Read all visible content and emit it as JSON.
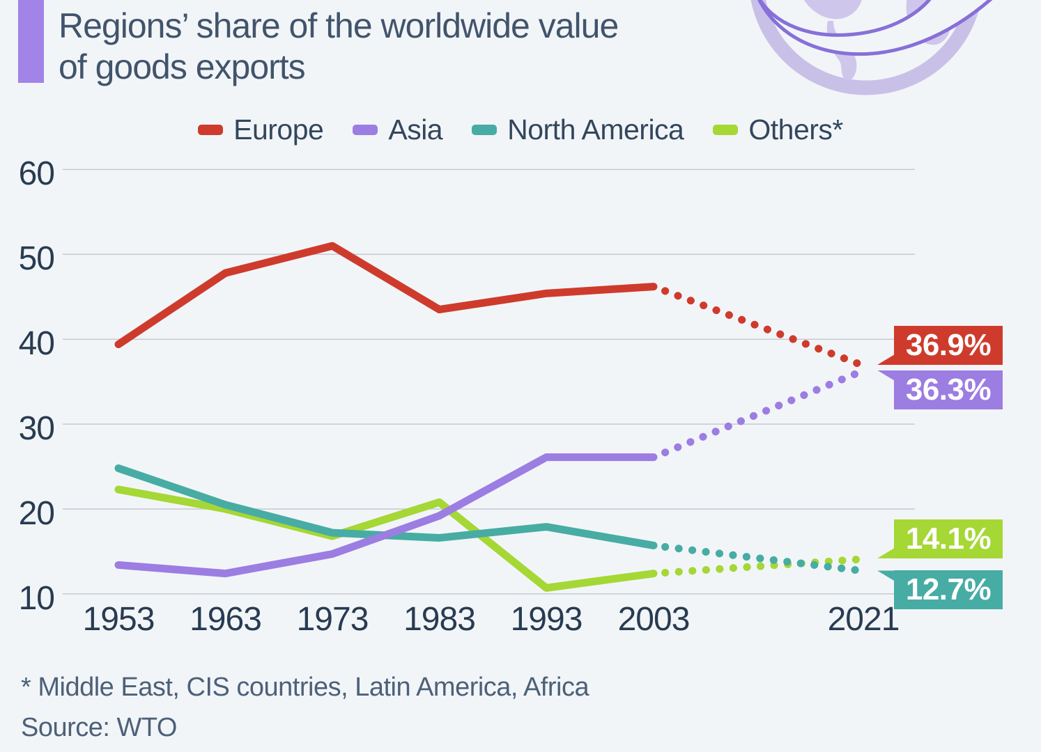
{
  "title": "Regions’ share of the worldwide value\nof goods exports",
  "footnote": "* Middle East, CIS countries, Latin America, Africa",
  "source": "Source: WTO",
  "logo": "globe-with-orbit-icon",
  "colors": {
    "background": "#f2f5f8",
    "accent_bar": "#a283e7",
    "title_text": "#41546b",
    "tick_text": "#283b51",
    "gridline": "#c5cad0",
    "europe": "#ce3b2c",
    "asia": "#9c7de2",
    "north_america": "#47aca4",
    "others": "#a5d735",
    "logo_light": "#cbc2ea",
    "logo_swoosh": "#8770d8"
  },
  "chart_data": {
    "type": "line",
    "title": "Regions’ share of the worldwide value of goods exports",
    "x": [
      1953,
      1963,
      1973,
      1983,
      1993,
      2003,
      2021
    ],
    "x_tick_labels": [
      "1953",
      "1963",
      "1973",
      "1983",
      "1993",
      "2003",
      "2021"
    ],
    "y_ticks": [
      60,
      50,
      40,
      30,
      20,
      10
    ],
    "ylim": [
      8,
      62
    ],
    "unit": "%",
    "grid": "horizontal",
    "legend_position": "top",
    "dotted_from_index": 5,
    "dotted_note": "segment from 2003 to 2021 is drawn as a dotted projection",
    "series": [
      {
        "name": "Others*",
        "color": "#a5d735",
        "values": [
          22.3,
          20.0,
          16.8,
          20.8,
          10.7,
          12.4,
          14.1
        ],
        "end_label": "14.1%",
        "tail": "down"
      },
      {
        "name": "North America",
        "color": "#47aca4",
        "values": [
          24.8,
          20.5,
          17.2,
          16.6,
          17.9,
          15.7,
          12.7
        ],
        "end_label": "12.7%",
        "tail": "up"
      },
      {
        "name": "Asia",
        "color": "#9c7de2",
        "values": [
          13.4,
          12.4,
          14.7,
          19.2,
          26.1,
          26.1,
          36.3
        ],
        "end_label": "36.3%",
        "tail": "up"
      },
      {
        "name": "Europe",
        "color": "#ce3b2c",
        "values": [
          39.4,
          47.8,
          51.0,
          43.5,
          45.4,
          46.2,
          36.9
        ],
        "end_label": "36.9%",
        "tail": "down"
      }
    ],
    "legend_order": [
      "Europe",
      "Asia",
      "North America",
      "Others*"
    ]
  }
}
